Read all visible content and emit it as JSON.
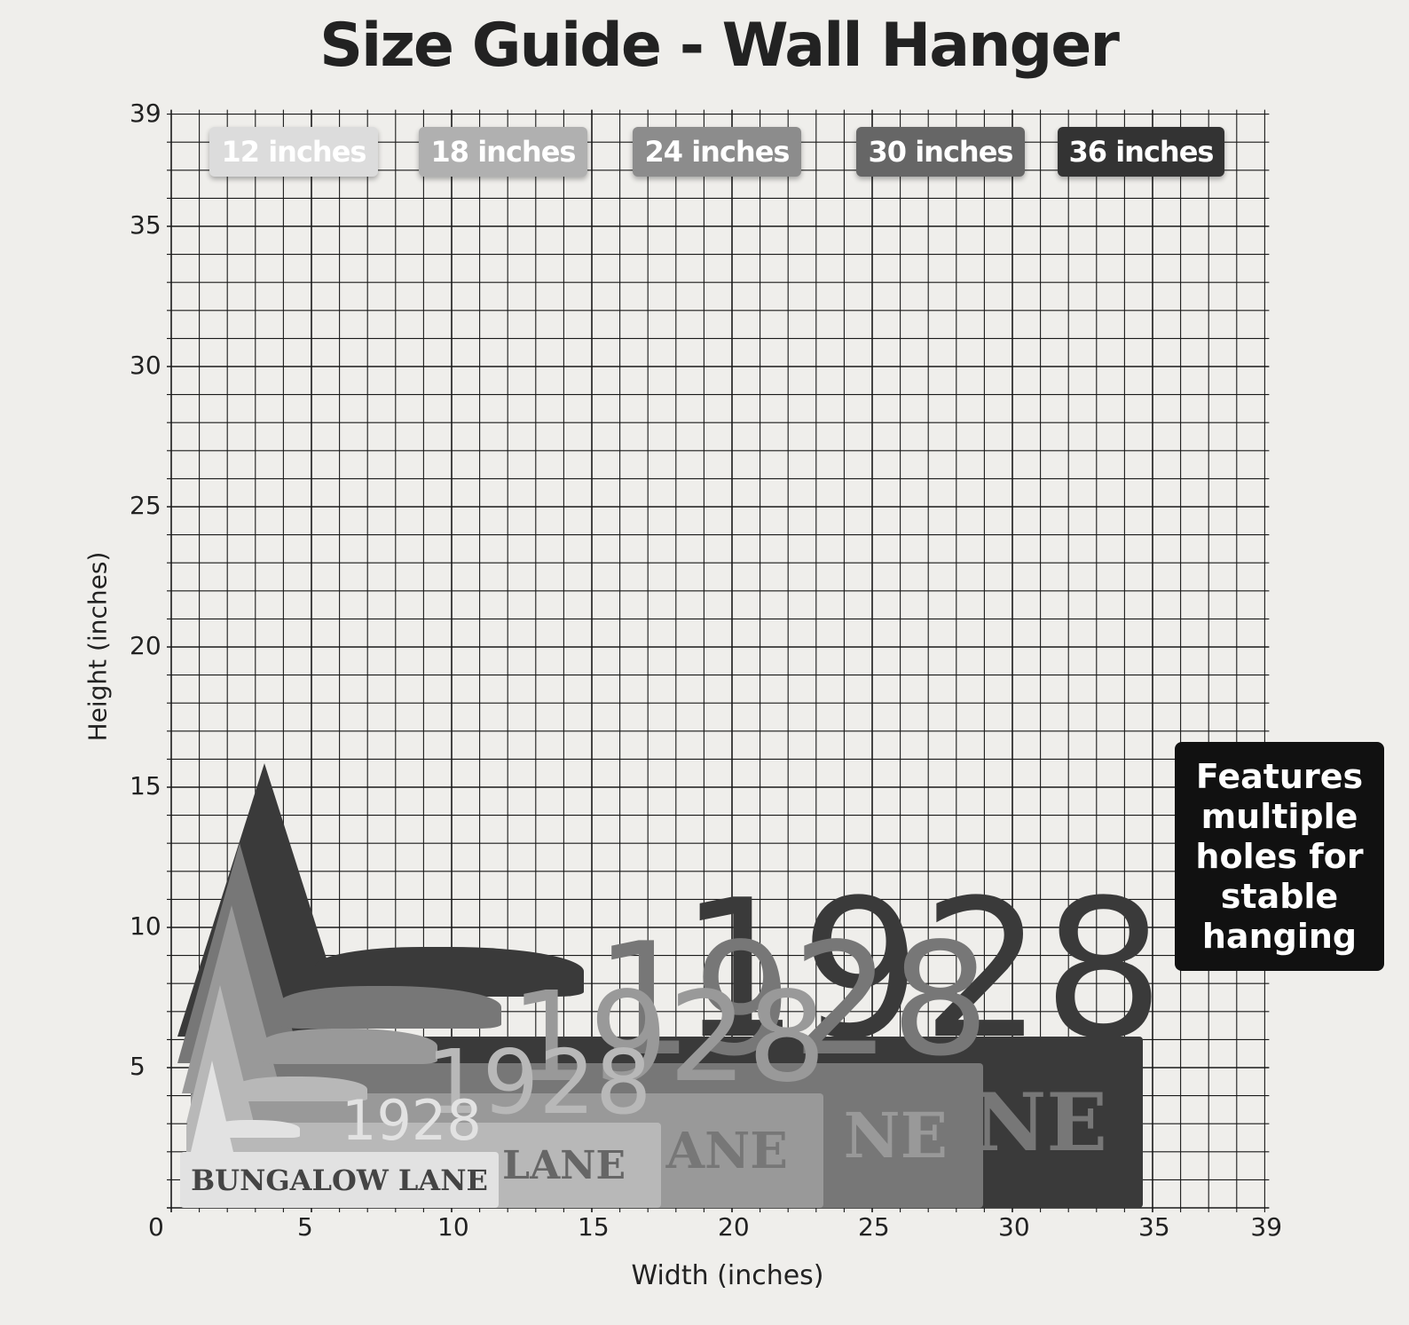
{
  "title": "Size Guide - Wall Hanger",
  "axes": {
    "x_label": "Width (inches)",
    "y_label": "Height (inches)",
    "x_ticks": [
      "0",
      "5",
      "10",
      "15",
      "20",
      "25",
      "30",
      "35",
      "39"
    ],
    "y_ticks": [
      "0",
      "5",
      "10",
      "15",
      "20",
      "25",
      "30",
      "35",
      "39"
    ],
    "range": [
      0,
      39
    ]
  },
  "sizes": [
    {
      "label": "12 inches",
      "color": "#dcdcdc",
      "plate_color": "#e2e2e2",
      "text_color": "#444"
    },
    {
      "label": "18 inches",
      "color": "#b0b0b0",
      "plate_color": "#b8b8b8",
      "text_color": "#666"
    },
    {
      "label": "24 inches",
      "color": "#8c8c8c",
      "plate_color": "#999999",
      "text_color": "#777"
    },
    {
      "label": "30 inches",
      "color": "#666666",
      "plate_color": "#777777",
      "text_color": "#999"
    },
    {
      "label": "36 inches",
      "color": "#333333",
      "plate_color": "#3a3a3a",
      "text_color": "#777"
    }
  ],
  "sign": {
    "name": "BUNGALOW LANE",
    "number": "1928",
    "partial_names": [
      "LANE",
      "ANE",
      "NE",
      "NE"
    ]
  },
  "feature_note": "Features multiple holes for stable hanging"
}
